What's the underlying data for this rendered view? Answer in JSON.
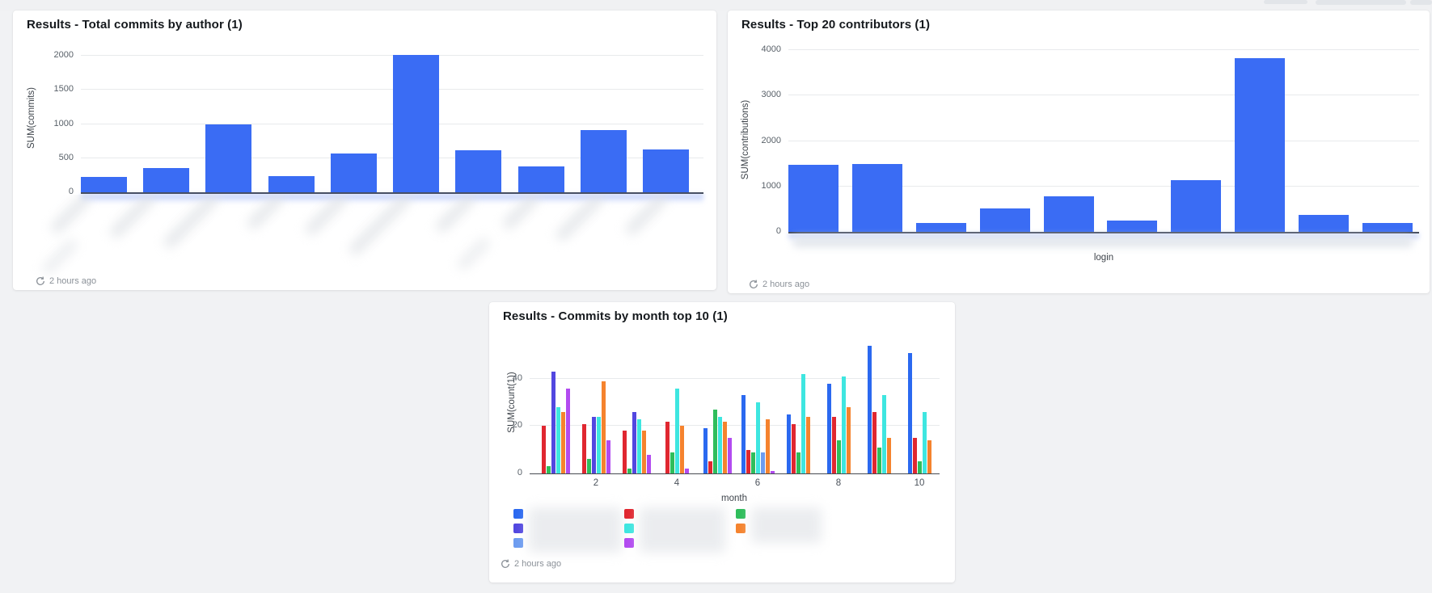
{
  "page": {
    "background": "#f1f2f4",
    "accent_blue": "#3a6cf4"
  },
  "cards": [
    {
      "title": "Results - Total commits by author (1)",
      "timestamp": "2 hours ago"
    },
    {
      "title": "Results - Top 20 contributors (1)",
      "timestamp": "2 hours ago"
    },
    {
      "title": "Results - Commits by month top 10 (1)",
      "timestamp": "2 hours ago"
    }
  ],
  "chart_data": [
    {
      "type": "bar",
      "title": "Results - Total commits by author (1)",
      "xlabel": "",
      "ylabel": "SUM(commits)",
      "yticks": [
        0,
        500,
        1000,
        1500,
        2000
      ],
      "ylim": [
        0,
        2160
      ],
      "grid": true,
      "legend": "none",
      "bar_color": "#3a6cf4",
      "n_bars": 10,
      "x_labels_blurred": true,
      "categories": null,
      "values": [
        220,
        360,
        990,
        240,
        570,
        2010,
        620,
        380,
        910,
        630
      ]
    },
    {
      "type": "bar",
      "title": "Results - Top 20 contributors (1)",
      "xlabel": "login",
      "ylabel": "SUM(contributions)",
      "yticks": [
        0,
        1000,
        2000,
        3000,
        4000
      ],
      "ylim": [
        0,
        4090
      ],
      "grid": true,
      "legend": "none",
      "bar_color": "#3a6cf4",
      "n_bars": 10,
      "x_labels_blurred": true,
      "categories": null,
      "values": [
        1470,
        1500,
        195,
        520,
        780,
        245,
        1130,
        3820,
        375,
        195
      ]
    },
    {
      "type": "bar",
      "subtype": "grouped",
      "title": "Results - Commits by month top 10 (1)",
      "xlabel": "month",
      "ylabel": "SUM(count(1))",
      "yticks": [
        0,
        20,
        40
      ],
      "xticks": [
        2,
        4,
        6,
        8,
        10
      ],
      "ylim": [
        0,
        60
      ],
      "grid": true,
      "legend_position": "bottom",
      "legend_labels_blurred": true,
      "series_colors": {
        "blue": "#2b69f0",
        "indigo": "#5247e0",
        "lightblue": "#6d9cf0",
        "red": "#e02730",
        "cyan": "#3ee6e0",
        "purple": "#b24bf0",
        "green": "#2fbd5b",
        "orange": "#f5832e"
      },
      "legend_columns": [
        [
          "blue",
          "indigo",
          "lightblue"
        ],
        [
          "red",
          "cyan",
          "purple"
        ],
        [
          "green",
          "orange"
        ]
      ],
      "groups": [
        {
          "month": 1,
          "bars": [
            {
              "c": "red",
              "v": 20
            },
            {
              "c": "green",
              "v": 3
            },
            {
              "c": "indigo",
              "v": 43
            },
            {
              "c": "cyan",
              "v": 28
            },
            {
              "c": "orange",
              "v": 26
            },
            {
              "c": "purple",
              "v": 36
            }
          ]
        },
        {
          "month": 2,
          "bars": [
            {
              "c": "red",
              "v": 21
            },
            {
              "c": "green",
              "v": 6
            },
            {
              "c": "indigo",
              "v": 24
            },
            {
              "c": "cyan",
              "v": 24
            },
            {
              "c": "orange",
              "v": 39
            },
            {
              "c": "purple",
              "v": 14
            }
          ]
        },
        {
          "month": 3,
          "bars": [
            {
              "c": "red",
              "v": 18
            },
            {
              "c": "green",
              "v": 2
            },
            {
              "c": "indigo",
              "v": 26
            },
            {
              "c": "cyan",
              "v": 23
            },
            {
              "c": "orange",
              "v": 18
            },
            {
              "c": "purple",
              "v": 8
            }
          ]
        },
        {
          "month": 4,
          "bars": [
            {
              "c": "red",
              "v": 22
            },
            {
              "c": "green",
              "v": 9
            },
            {
              "c": "cyan",
              "v": 36
            },
            {
              "c": "orange",
              "v": 20
            },
            {
              "c": "purple",
              "v": 2
            }
          ]
        },
        {
          "month": 5,
          "bars": [
            {
              "c": "blue",
              "v": 19
            },
            {
              "c": "red",
              "v": 5
            },
            {
              "c": "green",
              "v": 27
            },
            {
              "c": "cyan",
              "v": 24
            },
            {
              "c": "orange",
              "v": 22
            },
            {
              "c": "purple",
              "v": 15
            }
          ]
        },
        {
          "month": 6,
          "bars": [
            {
              "c": "blue",
              "v": 33
            },
            {
              "c": "red",
              "v": 10
            },
            {
              "c": "green",
              "v": 9
            },
            {
              "c": "cyan",
              "v": 30
            },
            {
              "c": "lightblue",
              "v": 9
            },
            {
              "c": "orange",
              "v": 23
            },
            {
              "c": "purple",
              "v": 1
            }
          ]
        },
        {
          "month": 7,
          "bars": [
            {
              "c": "blue",
              "v": 25
            },
            {
              "c": "red",
              "v": 21
            },
            {
              "c": "green",
              "v": 9
            },
            {
              "c": "cyan",
              "v": 42
            },
            {
              "c": "orange",
              "v": 24
            }
          ]
        },
        {
          "month": 8,
          "bars": [
            {
              "c": "blue",
              "v": 38
            },
            {
              "c": "red",
              "v": 24
            },
            {
              "c": "green",
              "v": 14
            },
            {
              "c": "cyan",
              "v": 41
            },
            {
              "c": "orange",
              "v": 28
            }
          ]
        },
        {
          "month": 9,
          "bars": [
            {
              "c": "blue",
              "v": 54
            },
            {
              "c": "red",
              "v": 26
            },
            {
              "c": "green",
              "v": 11
            },
            {
              "c": "cyan",
              "v": 33
            },
            {
              "c": "orange",
              "v": 15
            }
          ]
        },
        {
          "month": 10,
          "bars": [
            {
              "c": "blue",
              "v": 51
            },
            {
              "c": "red",
              "v": 15
            },
            {
              "c": "green",
              "v": 5
            },
            {
              "c": "cyan",
              "v": 26
            },
            {
              "c": "orange",
              "v": 14
            }
          ]
        }
      ]
    }
  ]
}
